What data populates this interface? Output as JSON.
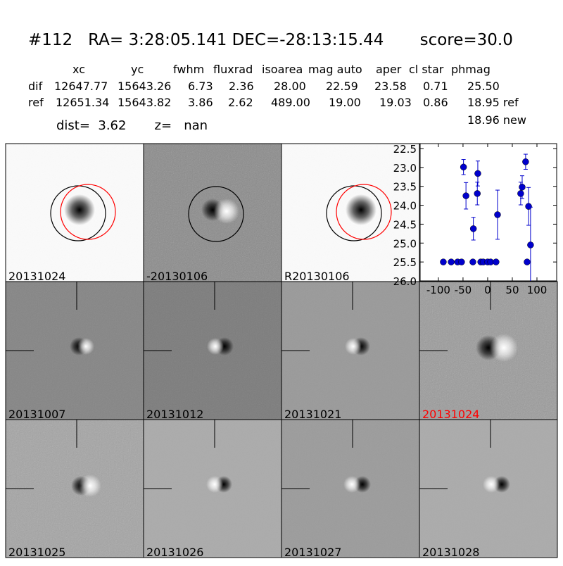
{
  "header": {
    "title": "#112   RA= 3:28:05.141 DEC=-28:13:15.44       score=30.0",
    "info": "dist=  3.62       z=   nan"
  },
  "table": {
    "columns": [
      "xc",
      "yc",
      "fwhm",
      "fluxrad",
      "isoarea",
      "mag auto",
      "aper",
      "cl star",
      "phmag"
    ],
    "rows": [
      {
        "label": "dif",
        "cells": [
          "12647.77",
          "15643.26",
          "6.73",
          "2.36",
          "28.00",
          "22.59",
          "23.58",
          "0.71",
          "25.50"
        ]
      },
      {
        "label": "ref",
        "cells": [
          "12651.34",
          "15643.82",
          "3.86",
          "2.62",
          "489.00",
          "19.00",
          "19.03",
          "0.86",
          "18.95 ref"
        ]
      }
    ],
    "extra": "18.96 new"
  },
  "panels": [
    {
      "label": "20131024"
    },
    {
      "label": "-20130106"
    },
    {
      "label": "R20130106"
    },
    {
      "label": "20131007"
    },
    {
      "label": "20131012"
    },
    {
      "label": "20131021"
    },
    {
      "label": "20131024",
      "color": "#ff0000"
    },
    {
      "label": "20131025"
    },
    {
      "label": "20131026"
    },
    {
      "label": "20131027"
    },
    {
      "label": "20131028"
    }
  ],
  "chart_data": {
    "type": "errorbar",
    "color": "#0000cc",
    "x": [
      -90,
      -74,
      -61,
      -53,
      -49,
      -44,
      -29,
      -30,
      -21,
      -20,
      -14,
      -9,
      0,
      6,
      17,
      20,
      67,
      70,
      77,
      80,
      83,
      87
    ],
    "values": [
      25.5,
      25.5,
      25.5,
      25.5,
      22.99,
      23.75,
      24.62,
      25.5,
      23.69,
      23.16,
      25.5,
      25.5,
      25.5,
      25.5,
      25.5,
      24.25,
      23.69,
      23.52,
      22.85,
      25.5,
      24.03,
      25.05
    ],
    "errors": [
      0,
      0,
      0,
      0,
      0.2,
      0.35,
      0.3,
      0,
      0.3,
      0.33,
      0,
      0,
      0,
      0,
      0,
      0.65,
      0.3,
      0.3,
      0.2,
      0,
      0.5,
      1.0
    ],
    "xlim": [
      -137,
      140
    ],
    "ylim": [
      26.0,
      22.37
    ],
    "xticks": [
      -100,
      -50,
      0,
      50,
      100
    ],
    "yticks": [
      22.5,
      {
        "value": 23,
        "label": "23.0"
      },
      23.5,
      {
        "value": 24,
        "label": "24.0"
      },
      24.5,
      {
        "value": 25,
        "label": "25.0"
      },
      25.5,
      {
        "value": 26,
        "label": "26.0"
      }
    ]
  }
}
